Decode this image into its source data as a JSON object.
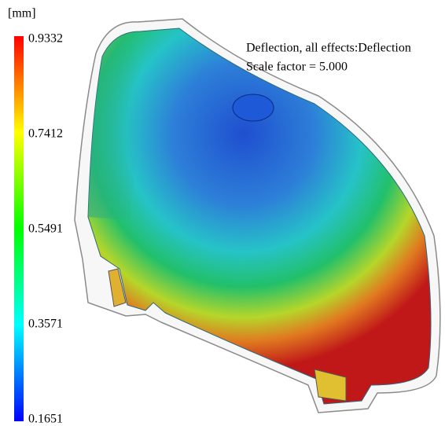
{
  "colorbar": {
    "unit": "[mm]",
    "ticks": [
      "0.9332",
      "0.7412",
      "0.5491",
      "0.3571",
      "0.1651"
    ]
  },
  "annotation": {
    "line1": "Deflection, all effects:Deflection",
    "line2": "Scale factor = 5.000"
  }
}
